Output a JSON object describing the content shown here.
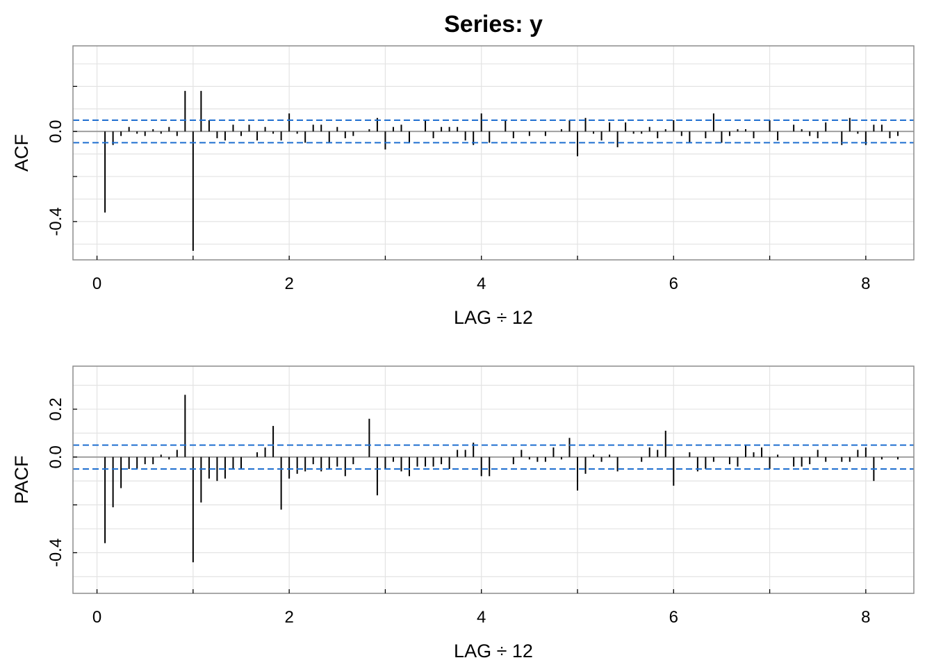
{
  "title": "Series:  y",
  "chart_data": [
    {
      "type": "bar",
      "subtype": "acf-stem",
      "ylabel": "ACF",
      "xlabel": "LAG ÷ 12",
      "xlim": [
        -0.25,
        8.5
      ],
      "ylim": [
        -0.57,
        0.38
      ],
      "xticks": [
        0,
        2,
        4,
        6,
        8
      ],
      "yticks": [
        -0.4,
        0.0
      ],
      "ytick_labels": [
        "-0.4",
        "0.0"
      ],
      "grid": true,
      "confidence_bound": 0.05,
      "colors": {
        "bars": "#000000",
        "bounds": "#1f6fd0",
        "zero_line": "#999999",
        "grid": "#e3e3e3"
      },
      "lags": [
        0.0833,
        0.1667,
        0.25,
        0.3333,
        0.4167,
        0.5,
        0.5833,
        0.6667,
        0.75,
        0.8333,
        0.9167,
        1.0,
        1.0833,
        1.1667,
        1.25,
        1.3333,
        1.4167,
        1.5,
        1.5833,
        1.6667,
        1.75,
        1.8333,
        1.9167,
        2.0,
        2.0833,
        2.1667,
        2.25,
        2.3333,
        2.4167,
        2.5,
        2.5833,
        2.6667,
        2.75,
        2.8333,
        2.9167,
        3.0,
        3.0833,
        3.1667,
        3.25,
        3.3333,
        3.4167,
        3.5,
        3.5833,
        3.6667,
        3.75,
        3.8333,
        3.9167,
        4.0,
        4.0833,
        4.1667,
        4.25,
        4.3333,
        4.4167,
        4.5,
        4.5833,
        4.6667,
        4.75,
        4.8333,
        4.9167,
        5.0,
        5.0833,
        5.1667,
        5.25,
        5.3333,
        5.4167,
        5.5,
        5.5833,
        5.6667,
        5.75,
        5.8333,
        5.9167,
        6.0,
        6.0833,
        6.1667,
        6.25,
        6.3333,
        6.4167,
        6.5,
        6.5833,
        6.6667,
        6.75,
        6.8333,
        6.9167,
        7.0,
        7.0833,
        7.1667,
        7.25,
        7.3333,
        7.4167,
        7.5,
        7.5833,
        7.6667,
        7.75,
        7.8333,
        7.9167,
        8.0,
        8.0833,
        8.1667,
        8.25,
        8.3333
      ],
      "values": [
        -0.36,
        -0.06,
        -0.02,
        0.02,
        -0.01,
        -0.02,
        0.01,
        -0.01,
        0.02,
        -0.02,
        0.18,
        -0.53,
        0.18,
        0.05,
        -0.03,
        -0.04,
        0.03,
        -0.02,
        0.03,
        -0.04,
        0.02,
        -0.01,
        -0.04,
        0.08,
        -0.01,
        -0.05,
        0.03,
        0.03,
        -0.05,
        0.02,
        -0.03,
        -0.02,
        0.0,
        0.01,
        0.06,
        -0.08,
        0.02,
        0.03,
        -0.05,
        0.0,
        0.05,
        -0.03,
        0.02,
        0.02,
        0.02,
        -0.04,
        -0.06,
        0.08,
        -0.05,
        0.0,
        0.05,
        -0.03,
        0.0,
        -0.02,
        0.0,
        -0.02,
        0.0,
        0.01,
        0.05,
        -0.11,
        0.06,
        -0.01,
        -0.04,
        0.04,
        -0.07,
        0.04,
        -0.01,
        -0.01,
        0.02,
        -0.03,
        0.01,
        0.05,
        -0.02,
        -0.05,
        0.0,
        -0.03,
        0.08,
        -0.05,
        -0.02,
        0.01,
        0.01,
        -0.03,
        0.0,
        0.05,
        -0.04,
        0.0,
        0.03,
        0.01,
        -0.02,
        -0.03,
        0.04,
        0.0,
        -0.06,
        0.06,
        -0.01,
        -0.06,
        0.03,
        0.03,
        -0.03,
        -0.02
      ]
    },
    {
      "type": "bar",
      "subtype": "pacf-stem",
      "ylabel": "PACF",
      "xlabel": "LAG ÷ 12",
      "xlim": [
        -0.25,
        8.5
      ],
      "ylim": [
        -0.57,
        0.38
      ],
      "xticks": [
        0,
        2,
        4,
        6,
        8
      ],
      "yticks": [
        -0.4,
        0.0,
        0.2
      ],
      "ytick_labels": [
        "-0.4",
        "0.0",
        "0.2"
      ],
      "grid": true,
      "confidence_bound": 0.05,
      "colors": {
        "bars": "#000000",
        "bounds": "#1f6fd0",
        "zero_line": "#999999",
        "grid": "#e3e3e3"
      },
      "lags": [
        0.0833,
        0.1667,
        0.25,
        0.3333,
        0.4167,
        0.5,
        0.5833,
        0.6667,
        0.75,
        0.8333,
        0.9167,
        1.0,
        1.0833,
        1.1667,
        1.25,
        1.3333,
        1.4167,
        1.5,
        1.5833,
        1.6667,
        1.75,
        1.8333,
        1.9167,
        2.0,
        2.0833,
        2.1667,
        2.25,
        2.3333,
        2.4167,
        2.5,
        2.5833,
        2.6667,
        2.75,
        2.8333,
        2.9167,
        3.0,
        3.0833,
        3.1667,
        3.25,
        3.3333,
        3.4167,
        3.5,
        3.5833,
        3.6667,
        3.75,
        3.8333,
        3.9167,
        4.0,
        4.0833,
        4.1667,
        4.25,
        4.3333,
        4.4167,
        4.5,
        4.5833,
        4.6667,
        4.75,
        4.8333,
        4.9167,
        5.0,
        5.0833,
        5.1667,
        5.25,
        5.3333,
        5.4167,
        5.5,
        5.5833,
        5.6667,
        5.75,
        5.8333,
        5.9167,
        6.0,
        6.0833,
        6.1667,
        6.25,
        6.3333,
        6.4167,
        6.5,
        6.5833,
        6.6667,
        6.75,
        6.8333,
        6.9167,
        7.0,
        7.0833,
        7.1667,
        7.25,
        7.3333,
        7.4167,
        7.5,
        7.5833,
        7.6667,
        7.75,
        7.8333,
        7.9167,
        8.0,
        8.0833,
        8.1667,
        8.25,
        8.3333
      ],
      "values": [
        -0.36,
        -0.21,
        -0.13,
        -0.05,
        -0.05,
        -0.03,
        -0.03,
        0.01,
        -0.01,
        0.03,
        0.26,
        -0.44,
        -0.19,
        -0.09,
        -0.1,
        -0.09,
        -0.05,
        -0.05,
        0.0,
        0.02,
        0.04,
        0.13,
        -0.22,
        -0.09,
        -0.07,
        -0.06,
        -0.03,
        -0.06,
        -0.05,
        -0.04,
        -0.08,
        -0.03,
        0.0,
        0.16,
        -0.16,
        -0.05,
        -0.02,
        -0.06,
        -0.08,
        -0.04,
        -0.04,
        -0.04,
        -0.03,
        -0.05,
        0.03,
        0.03,
        0.06,
        -0.08,
        -0.08,
        0.0,
        0.0,
        -0.03,
        0.03,
        -0.01,
        -0.02,
        -0.02,
        0.04,
        -0.01,
        0.08,
        -0.14,
        -0.07,
        0.01,
        -0.02,
        0.01,
        -0.06,
        0.0,
        0.0,
        -0.02,
        0.04,
        0.03,
        0.11,
        -0.12,
        0.0,
        0.02,
        -0.06,
        -0.05,
        -0.02,
        0.0,
        -0.03,
        -0.04,
        0.05,
        0.02,
        0.04,
        -0.05,
        0.01,
        0.0,
        -0.04,
        -0.04,
        -0.03,
        0.03,
        -0.02,
        0.0,
        -0.02,
        -0.02,
        0.03,
        0.04,
        -0.1,
        -0.01,
        0.0,
        -0.01
      ]
    }
  ]
}
